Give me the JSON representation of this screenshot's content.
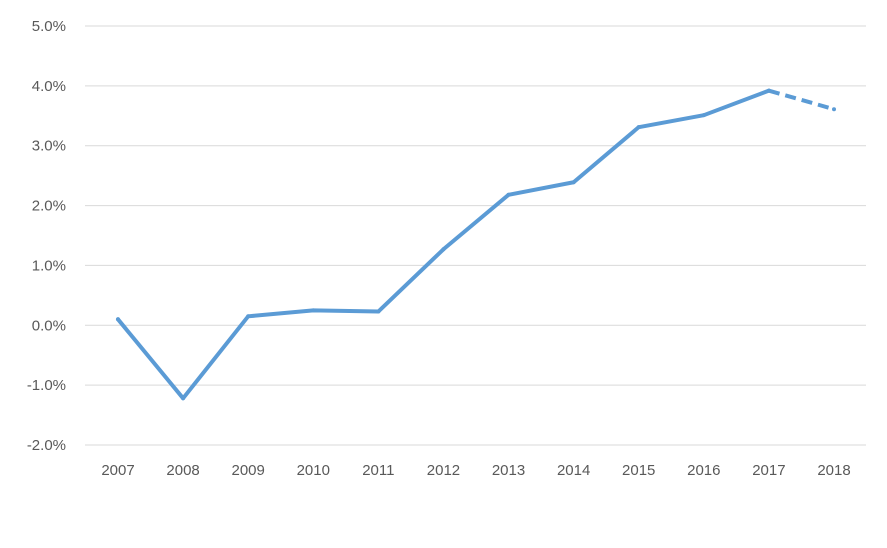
{
  "chart_data": {
    "type": "line",
    "title": "",
    "xlabel": "",
    "ylabel": "",
    "ylim": [
      -2.0,
      5.0
    ],
    "y_ticks": [
      "5.0%",
      "4.0%",
      "3.0%",
      "2.0%",
      "1.0%",
      "0.0%",
      "-1.0%",
      "-2.0%"
    ],
    "y_tick_values": [
      5.0,
      4.0,
      3.0,
      2.0,
      1.0,
      0.0,
      -1.0,
      -2.0
    ],
    "categories": [
      "2007",
      "2008",
      "2009",
      "2010",
      "2011",
      "2012",
      "2013",
      "2014",
      "2015",
      "2016",
      "2017",
      "2018"
    ],
    "values": [
      0.1,
      -1.22,
      0.15,
      0.25,
      0.23,
      1.27,
      2.18,
      2.39,
      3.31,
      3.51,
      3.92,
      3.61
    ],
    "dashed_from_index": 10,
    "grid": true,
    "legend": "none",
    "line_color": "#5b9bd5",
    "grid_color": "#d9d9d9",
    "text_color": "#595959"
  }
}
